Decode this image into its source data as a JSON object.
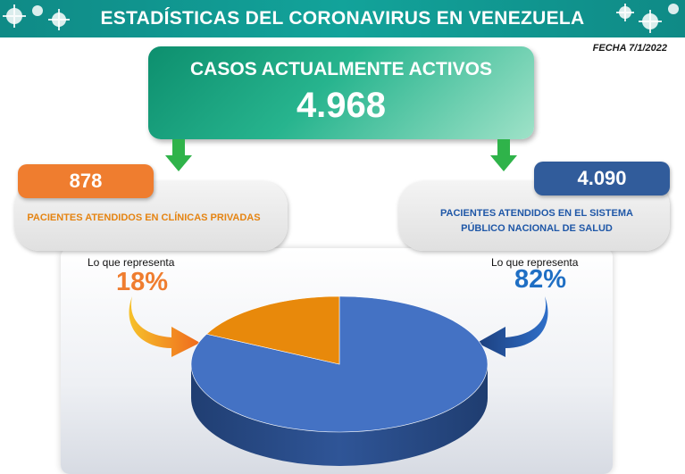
{
  "header": {
    "title": "ESTADÍSTICAS DEL CORONAVIRUS EN VENEZUELA"
  },
  "fecha": "FECHA 7/1/2022",
  "active": {
    "title": "CASOS ACTUALMENTE ACTIVOS",
    "value": "4.968"
  },
  "private": {
    "value": "878",
    "label": "PACIENTES ATENDIDOS EN CLÍNICAS PRIVADAS",
    "represents_label": "Lo que representa",
    "percent": "18%"
  },
  "public": {
    "value": "4.090",
    "label": "PACIENTES ATENDIDOS EN EL SISTEMA PÚBLICO NACIONAL DE SALUD",
    "represents_label": "Lo que representa",
    "percent": "82%"
  },
  "colors": {
    "header": "#0f8a86",
    "private": "#ef7d2f",
    "public": "#315c9b",
    "pie_private": "#e8890b",
    "pie_public": "#4472c4",
    "arrow": "#2fb34a"
  },
  "chart_data": {
    "type": "pie",
    "categories": [
      "Clínicas privadas",
      "Sistema público nacional de salud"
    ],
    "values": [
      878,
      4090
    ],
    "percent": [
      18,
      82
    ],
    "title": ""
  }
}
